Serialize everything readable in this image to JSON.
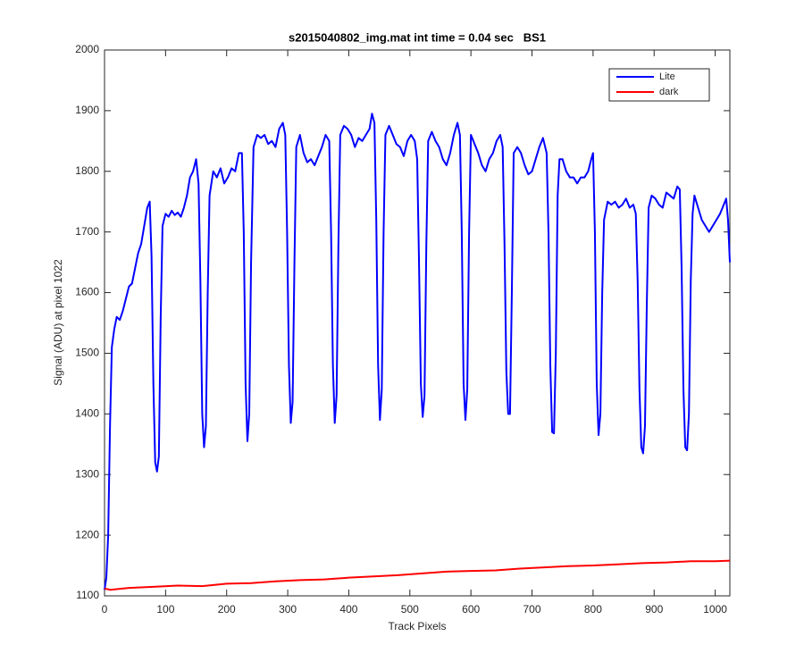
{
  "chart_data": {
    "type": "line",
    "title": "s2015040802_img.mat int time = 0.04 sec   BS1",
    "xlabel": "Track Pixels",
    "ylabel": "Signal (ADU) at pixel 1022",
    "xlim": [
      0,
      1024
    ],
    "ylim": [
      1100,
      2000
    ],
    "xticks": [
      0,
      100,
      200,
      300,
      400,
      500,
      600,
      700,
      800,
      900,
      1000
    ],
    "yticks": [
      1100,
      1200,
      1300,
      1400,
      1500,
      1600,
      1700,
      1800,
      1900,
      2000
    ],
    "grid": false,
    "legend": "northeast",
    "series": [
      {
        "name": "Lite",
        "color": "#0000ff",
        "x": [
          0,
          3,
          6,
          9,
          12,
          16,
          20,
          25,
          30,
          35,
          40,
          45,
          50,
          55,
          60,
          65,
          70,
          74,
          77,
          80,
          83,
          86,
          89,
          92,
          95,
          100,
          105,
          110,
          115,
          120,
          125,
          130,
          135,
          140,
          145,
          150,
          154,
          157,
          160,
          163,
          166,
          169,
          172,
          178,
          184,
          190,
          196,
          202,
          208,
          214,
          220,
          225,
          228,
          231,
          234,
          237,
          240,
          244,
          250,
          256,
          262,
          268,
          274,
          280,
          286,
          292,
          296,
          299,
          302,
          305,
          308,
          311,
          314,
          320,
          326,
          332,
          338,
          344,
          350,
          356,
          362,
          368,
          371,
          374,
          377,
          380,
          383,
          386,
          392,
          398,
          404,
          410,
          416,
          422,
          428,
          434,
          438,
          442,
          445,
          448,
          451,
          454,
          457,
          460,
          466,
          472,
          478,
          484,
          490,
          496,
          502,
          508,
          512,
          515,
          518,
          521,
          524,
          527,
          530,
          536,
          542,
          548,
          554,
          560,
          566,
          572,
          578,
          582,
          585,
          588,
          591,
          594,
          597,
          600,
          606,
          612,
          618,
          624,
          630,
          636,
          642,
          648,
          652,
          655,
          658,
          661,
          664,
          667,
          670,
          676,
          682,
          688,
          694,
          700,
          706,
          712,
          718,
          724,
          727,
          730,
          733,
          736,
          739,
          742,
          745,
          750,
          756,
          762,
          768,
          774,
          780,
          786,
          792,
          797,
          800,
          803,
          806,
          809,
          812,
          815,
          818,
          824,
          830,
          836,
          842,
          848,
          854,
          860,
          866,
          870,
          873,
          876,
          879,
          882,
          885,
          888,
          891,
          896,
          902,
          908,
          914,
          920,
          926,
          932,
          938,
          942,
          945,
          948,
          951,
          954,
          957,
          960,
          963,
          966,
          972,
          978,
          984,
          990,
          996,
          1002,
          1008,
          1014,
          1018,
          1021,
          1024
        ],
        "values": [
          1110,
          1130,
          1200,
          1380,
          1510,
          1540,
          1560,
          1555,
          1570,
          1590,
          1610,
          1615,
          1640,
          1665,
          1680,
          1710,
          1740,
          1750,
          1660,
          1450,
          1320,
          1305,
          1330,
          1560,
          1710,
          1730,
          1725,
          1735,
          1728,
          1732,
          1725,
          1740,
          1760,
          1790,
          1800,
          1820,
          1780,
          1620,
          1400,
          1345,
          1380,
          1600,
          1760,
          1800,
          1790,
          1805,
          1780,
          1790,
          1805,
          1800,
          1830,
          1830,
          1700,
          1450,
          1355,
          1400,
          1650,
          1840,
          1860,
          1855,
          1860,
          1845,
          1850,
          1840,
          1870,
          1880,
          1860,
          1700,
          1480,
          1385,
          1420,
          1650,
          1840,
          1860,
          1830,
          1815,
          1820,
          1810,
          1825,
          1840,
          1860,
          1850,
          1700,
          1480,
          1385,
          1430,
          1680,
          1860,
          1875,
          1870,
          1860,
          1840,
          1855,
          1850,
          1860,
          1870,
          1895,
          1880,
          1720,
          1480,
          1390,
          1440,
          1700,
          1860,
          1875,
          1860,
          1845,
          1840,
          1825,
          1850,
          1860,
          1850,
          1820,
          1650,
          1450,
          1395,
          1430,
          1680,
          1850,
          1865,
          1850,
          1840,
          1820,
          1810,
          1830,
          1860,
          1880,
          1860,
          1700,
          1450,
          1390,
          1440,
          1700,
          1860,
          1845,
          1830,
          1810,
          1800,
          1820,
          1830,
          1850,
          1860,
          1840,
          1680,
          1470,
          1400,
          1400,
          1600,
          1830,
          1840,
          1830,
          1810,
          1795,
          1800,
          1820,
          1840,
          1855,
          1830,
          1700,
          1480,
          1370,
          1368,
          1500,
          1760,
          1820,
          1820,
          1800,
          1790,
          1790,
          1780,
          1790,
          1790,
          1800,
          1820,
          1830,
          1700,
          1450,
          1365,
          1400,
          1600,
          1720,
          1750,
          1745,
          1750,
          1740,
          1745,
          1755,
          1740,
          1745,
          1730,
          1620,
          1440,
          1345,
          1335,
          1380,
          1580,
          1740,
          1760,
          1755,
          1745,
          1740,
          1765,
          1760,
          1755,
          1775,
          1770,
          1640,
          1440,
          1345,
          1340,
          1400,
          1620,
          1730,
          1760,
          1740,
          1720,
          1710,
          1700,
          1710,
          1720,
          1730,
          1745,
          1755,
          1720,
          1650
        ]
      },
      {
        "name": "dark",
        "color": "#ff0000",
        "x": [
          0,
          10,
          40,
          80,
          120,
          160,
          200,
          240,
          280,
          320,
          360,
          400,
          440,
          480,
          520,
          560,
          600,
          640,
          680,
          720,
          760,
          800,
          840,
          880,
          920,
          960,
          1000,
          1024
        ],
        "values": [
          1112,
          1110,
          1113,
          1115,
          1117,
          1116,
          1120,
          1121,
          1124,
          1126,
          1127,
          1130,
          1132,
          1134,
          1137,
          1140,
          1141,
          1142,
          1145,
          1147,
          1149,
          1150,
          1152,
          1154,
          1155,
          1157,
          1157,
          1158
        ]
      }
    ]
  }
}
